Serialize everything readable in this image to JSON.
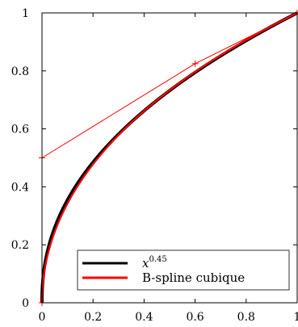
{
  "chart_data": {
    "type": "line",
    "title": "",
    "xlabel": "",
    "ylabel": "",
    "xlim": [
      0,
      1
    ],
    "ylim": [
      0,
      1
    ],
    "x_ticks": [
      "0",
      "0.2",
      "0.4",
      "0.6",
      "0.8",
      "1"
    ],
    "y_ticks": [
      "0",
      "0.2",
      "0.4",
      "0.6",
      "0.8",
      "1"
    ],
    "grid": false,
    "legend_position": "bottom-right",
    "series": [
      {
        "name": "x^0.45",
        "color": "#000000",
        "function": "x^0.45"
      },
      {
        "name": "B-spline cubique",
        "color": "#ff0000",
        "control_points": [
          [
            0,
            0
          ],
          [
            0,
            0.5
          ],
          [
            0.6,
            0.825
          ],
          [
            1,
            1
          ]
        ]
      }
    ],
    "control_polygon": {
      "color": "#ff0000",
      "points": [
        [
          0,
          0
        ],
        [
          0,
          0.5
        ],
        [
          0.6,
          0.825
        ],
        [
          1,
          1
        ]
      ]
    },
    "legend": {
      "entries": [
        {
          "base": "x",
          "superscript": "0.45",
          "color": "#000000"
        },
        {
          "label": "B-spline cubique",
          "color": "#ff0000"
        }
      ]
    }
  }
}
